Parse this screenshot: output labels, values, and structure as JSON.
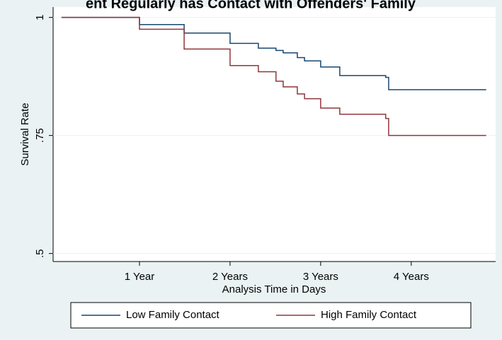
{
  "chart_data": {
    "type": "line",
    "step": true,
    "title": "ent Regularly has Contact with Offenders' Family",
    "x_label": "Analysis Time in Days",
    "y_label": "Survival Rate",
    "xlim": [
      17,
      1800
    ],
    "ylim": [
      0.483,
      1.01
    ],
    "xticks": [
      {
        "value": 365,
        "label": "1 Year"
      },
      {
        "value": 730,
        "label": "2 Years"
      },
      {
        "value": 1095,
        "label": "3 Years"
      },
      {
        "value": 1460,
        "label": "4 Years"
      }
    ],
    "yticks": [
      {
        "value": 0.5,
        "label": ".5"
      },
      {
        "value": 0.75,
        "label": ".75"
      },
      {
        "value": 1,
        "label": "1"
      }
    ],
    "grid": true,
    "legend": "bottom",
    "x": [
      51,
      231,
      365,
      545,
      730,
      844,
      915,
      944,
      1001,
      1030,
      1095,
      1172,
      1357,
      1369,
      1762
    ],
    "series": [
      {
        "name": "Low Family Contact",
        "color": "#1a476f",
        "values": [
          1,
          1,
          0.985,
          0.967,
          0.945,
          0.935,
          0.93,
          0.925,
          0.915,
          0.908,
          0.895,
          0.877,
          0.873,
          0.847,
          0.847
        ]
      },
      {
        "name": "High Family Contact",
        "color": "#90353b",
        "values": [
          1,
          1,
          0.975,
          0.933,
          0.898,
          0.885,
          0.865,
          0.853,
          0.838,
          0.828,
          0.808,
          0.795,
          0.786,
          0.75,
          0.75
        ]
      }
    ]
  }
}
